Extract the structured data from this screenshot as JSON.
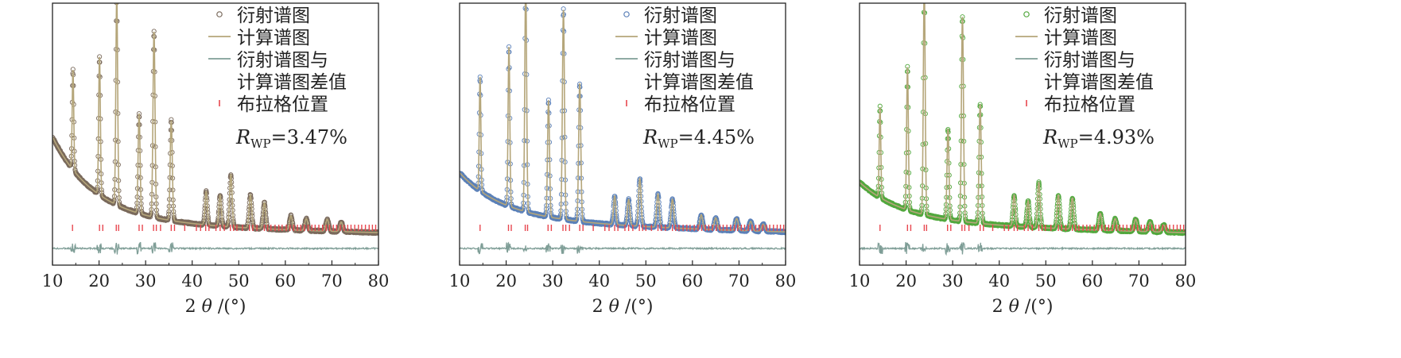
{
  "figure": {
    "background": "#ffffff"
  },
  "legend_labels": {
    "observed": "衍射谱图",
    "calculated": "计算谱图",
    "difference_line1": "衍射谱图与",
    "difference_line2": "计算谱图差值",
    "bragg": "布拉格位置"
  },
  "rwp_symbol": "R",
  "rwp_subscript": "WP",
  "xlabel_parts": {
    "prefix": "2 ",
    "theta": "θ",
    "suffix": " /(°)"
  },
  "colors": {
    "calculated": "#b5a67a",
    "difference": "#7f9e97",
    "bragg": "#e8474f",
    "axis": "#222222"
  },
  "chart_data": [
    {
      "type": "scatter",
      "title": "",
      "xlabel": "2 θ /(°)",
      "ylabel": "",
      "xlim": [
        10,
        80
      ],
      "xticks": [
        10,
        20,
        30,
        40,
        50,
        60,
        70,
        80
      ],
      "rwp_value": "=3.47%",
      "observed_color": "#7a6a5c",
      "series": [
        {
          "name": "衍射谱图",
          "type": "scatter",
          "peaks": [
            [
              14.4,
              0.42
            ],
            [
              20.1,
              0.58
            ],
            [
              23.8,
              0.88
            ],
            [
              28.6,
              0.42
            ],
            [
              31.8,
              0.78
            ],
            [
              35.5,
              0.42
            ],
            [
              43.0,
              0.14
            ],
            [
              46.0,
              0.13
            ],
            [
              48.3,
              0.22
            ],
            [
              52.5,
              0.14
            ],
            [
              55.5,
              0.11
            ],
            [
              61.2,
              0.06
            ],
            [
              64.5,
              0.05
            ],
            [
              69.0,
              0.05
            ],
            [
              72.0,
              0.04
            ]
          ],
          "background": [
            0.34,
            0.09
          ]
        },
        {
          "name": "计算谱图",
          "type": "line"
        },
        {
          "name": "衍射谱图与计算谱图差值",
          "type": "line",
          "offset": -0.2
        },
        {
          "name": "布拉格位置",
          "type": "ticks",
          "offset": -0.11
        }
      ],
      "bragg_positions": [
        14.3,
        20.1,
        20.8,
        23.7,
        24.2,
        28.6,
        29.3,
        31.7,
        32.3,
        33.2,
        35.5,
        36.2,
        38.4,
        40.9,
        41.8,
        42.9,
        43.6,
        45.1,
        46.0,
        46.9,
        48.2,
        48.9,
        49.6,
        50.8,
        52.3,
        53.0,
        53.9,
        55.5,
        56.2,
        56.9,
        57.8,
        58.6,
        59.3,
        60.2,
        61.0,
        61.8,
        62.6,
        63.3,
        64.1,
        64.9,
        65.7,
        66.4,
        67.2,
        68.0,
        68.8,
        69.5,
        70.3,
        71.0,
        71.8,
        72.6,
        73.4,
        74.1,
        74.9,
        75.7,
        76.4,
        77.2,
        78.0,
        78.7,
        79.4
      ]
    },
    {
      "type": "scatter",
      "title": "",
      "xlabel": "2 θ /(°)",
      "ylabel": "",
      "xlim": [
        10,
        80
      ],
      "xticks": [
        10,
        20,
        30,
        40,
        50,
        60,
        70,
        80
      ],
      "rwp_value": "=4.45%",
      "observed_color": "#5b80b8",
      "series": [
        {
          "name": "衍射谱图",
          "type": "scatter",
          "peaks": [
            [
              14.4,
              0.48
            ],
            [
              20.6,
              0.67
            ],
            [
              24.2,
              0.97
            ],
            [
              29.1,
              0.49
            ],
            [
              32.3,
              0.88
            ],
            [
              35.8,
              0.58
            ],
            [
              43.3,
              0.12
            ],
            [
              46.3,
              0.11
            ],
            [
              48.7,
              0.2
            ],
            [
              52.6,
              0.14
            ],
            [
              55.7,
              0.12
            ],
            [
              61.9,
              0.06
            ],
            [
              65.0,
              0.05
            ],
            [
              69.5,
              0.05
            ],
            [
              72.5,
              0.04
            ],
            [
              75.2,
              0.03
            ]
          ],
          "background": [
            0.18,
            0.1
          ]
        },
        {
          "name": "计算谱图",
          "type": "line"
        },
        {
          "name": "衍射谱图与计算谱图差值",
          "type": "line",
          "offset": -0.2
        },
        {
          "name": "布拉格位置",
          "type": "ticks",
          "offset": -0.11
        }
      ],
      "bragg_positions": [
        14.4,
        20.5,
        21.1,
        24.1,
        24.6,
        29.0,
        29.7,
        32.2,
        32.8,
        33.6,
        35.8,
        36.5,
        38.7,
        41.2,
        42.1,
        43.3,
        44.0,
        45.5,
        46.3,
        47.2,
        48.6,
        49.3,
        50.0,
        51.2,
        52.6,
        53.3,
        54.2,
        55.7,
        56.4,
        57.1,
        58.0,
        58.8,
        59.5,
        60.4,
        61.2,
        62.0,
        62.8,
        63.5,
        64.3,
        65.1,
        65.9,
        66.6,
        67.4,
        68.2,
        69.0,
        69.7,
        70.5,
        71.2,
        72.0,
        72.8,
        73.6,
        74.3,
        75.1,
        75.9,
        76.6,
        77.4,
        78.2,
        78.9,
        79.6
      ]
    },
    {
      "type": "scatter",
      "title": "",
      "xlabel": "2 θ /(°)",
      "ylabel": "",
      "xlim": [
        10,
        80
      ],
      "xticks": [
        10,
        20,
        30,
        40,
        50,
        60,
        70,
        80
      ],
      "rwp_value": "=4.93%",
      "observed_color": "#52a83e",
      "series": [
        {
          "name": "衍射谱图",
          "type": "scatter",
          "peaks": [
            [
              14.4,
              0.38
            ],
            [
              20.3,
              0.6
            ],
            [
              23.9,
              0.97
            ],
            [
              29.0,
              0.38
            ],
            [
              32.1,
              0.86
            ],
            [
              35.9,
              0.5
            ],
            [
              43.2,
              0.13
            ],
            [
              46.2,
              0.11
            ],
            [
              48.5,
              0.19
            ],
            [
              52.7,
              0.14
            ],
            [
              55.7,
              0.13
            ],
            [
              61.7,
              0.07
            ],
            [
              64.9,
              0.05
            ],
            [
              69.3,
              0.05
            ],
            [
              72.4,
              0.04
            ],
            [
              75.3,
              0.03
            ]
          ],
          "background": [
            0.15,
            0.09
          ]
        },
        {
          "name": "计算谱图",
          "type": "line"
        },
        {
          "name": "衍射谱图与计算谱图差值",
          "type": "line",
          "offset": -0.2
        },
        {
          "name": "布拉格位置",
          "type": "ticks",
          "offset": -0.11
        }
      ],
      "bragg_positions": [
        14.4,
        20.3,
        21.0,
        23.9,
        24.4,
        28.9,
        29.6,
        32.0,
        32.6,
        33.5,
        35.9,
        36.6,
        38.6,
        41.1,
        42.0,
        43.2,
        43.9,
        45.4,
        46.2,
        47.1,
        48.5,
        49.2,
        49.9,
        51.1,
        52.7,
        53.4,
        54.3,
        55.7,
        56.4,
        57.1,
        58.0,
        58.8,
        59.5,
        60.4,
        61.2,
        62.0,
        62.8,
        63.5,
        64.3,
        65.1,
        65.9,
        66.6,
        67.4,
        68.2,
        69.0,
        69.7,
        70.5,
        71.2,
        72.0,
        72.8,
        73.6,
        74.3,
        75.1,
        75.9,
        76.6,
        77.4,
        78.2,
        78.9,
        79.6
      ]
    }
  ]
}
